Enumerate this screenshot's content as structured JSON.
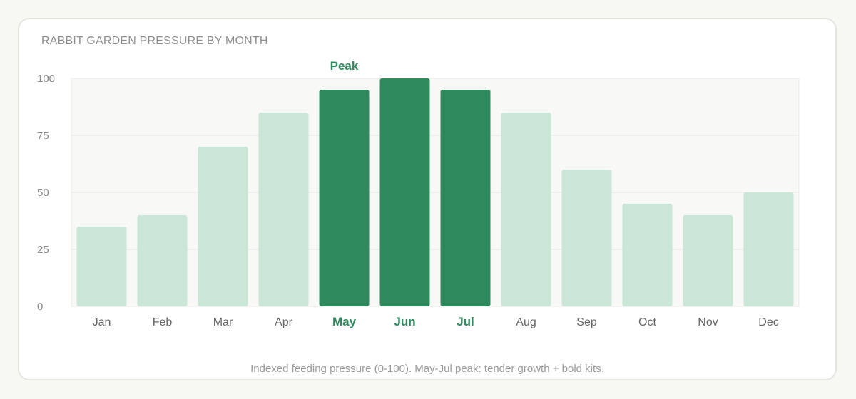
{
  "colors": {
    "bar_normal": "#c9e6d6",
    "bar_peak": "#2e8a5c",
    "peak_label": "#2e8a5c",
    "tick_label": "#666666",
    "ytick_label": "#8a8a8a",
    "grid": "#e8e8e4",
    "plot_bg": "#f8f8f6"
  },
  "chart_data": {
    "type": "bar",
    "title": "RABBIT GARDEN PRESSURE BY MONTH",
    "categories": [
      "Jan",
      "Feb",
      "Mar",
      "Apr",
      "May",
      "Jun",
      "Jul",
      "Aug",
      "Sep",
      "Oct",
      "Nov",
      "Dec"
    ],
    "values": [
      35,
      40,
      70,
      85,
      95,
      100,
      95,
      85,
      60,
      45,
      40,
      50
    ],
    "highlighted": [
      "May",
      "Jun",
      "Jul"
    ],
    "annotation": "Peak",
    "ylim": [
      0,
      100
    ],
    "yticks": [
      0,
      25,
      50,
      75,
      100
    ],
    "xlabel": "",
    "ylabel": "",
    "grid": true,
    "caption": "Indexed feeding pressure (0-100). May-Jul peak: tender growth + bold kits."
  }
}
